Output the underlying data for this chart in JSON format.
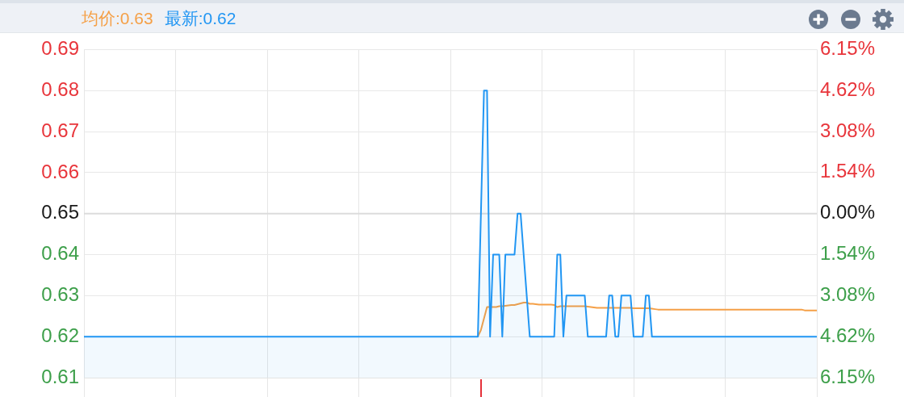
{
  "chart_data": {
    "type": "line",
    "categories": [
      null,
      null,
      null,
      null,
      null,
      null,
      null,
      null,
      null,
      null,
      null,
      null,
      null,
      null,
      null,
      null,
      null,
      null,
      null,
      null,
      null,
      null,
      null,
      null,
      null,
      null,
      null,
      null,
      null,
      null,
      null,
      null,
      null,
      null,
      null,
      null,
      null,
      null,
      null,
      null,
      null,
      null,
      null,
      null,
      null,
      null,
      null,
      null,
      null,
      null,
      null,
      null,
      null,
      null,
      null,
      null,
      null,
      null,
      null,
      null,
      null,
      null,
      null,
      null,
      null,
      null,
      null,
      null,
      null,
      null,
      null,
      null,
      null,
      null,
      null,
      null,
      null,
      null,
      null,
      null,
      null,
      null,
      null,
      null,
      null,
      null,
      null,
      null,
      null,
      null,
      null,
      null,
      null,
      null,
      null,
      null,
      null,
      null,
      null,
      null,
      null,
      null,
      null,
      null,
      null,
      null,
      null,
      null,
      null,
      null,
      null,
      null,
      null,
      null,
      null,
      null,
      null,
      null,
      null,
      null,
      null,
      null,
      null,
      null,
      null,
      null,
      null,
      null,
      null,
      null,
      null,
      null,
      null,
      null,
      null,
      null,
      null,
      null,
      null,
      null,
      null,
      null,
      null,
      null,
      null,
      null,
      null,
      null,
      null,
      null,
      null,
      null,
      null,
      null,
      null,
      null,
      null,
      null,
      null,
      null,
      null,
      null,
      null,
      null,
      null,
      null,
      null,
      null,
      null,
      null,
      null,
      null,
      null,
      null,
      null,
      null,
      null,
      null,
      null,
      null,
      null,
      null,
      null,
      null,
      null,
      null,
      null,
      null,
      null,
      null,
      null,
      null,
      null,
      null,
      null,
      null,
      null,
      null,
      null,
      null,
      null,
      null,
      null,
      null,
      null,
      null,
      null,
      null,
      null,
      null,
      null,
      null,
      null,
      null,
      null,
      null,
      null,
      null,
      null,
      null,
      null,
      null,
      null,
      null,
      null,
      null,
      null,
      null,
      null,
      null,
      null,
      null,
      null,
      null,
      null,
      null,
      null,
      null,
      null,
      null,
      null
    ],
    "series": [
      {
        "name": "均价:0.63",
        "type": "line",
        "color": "#f5a047",
        "values": [
          null,
          null,
          null,
          null,
          null,
          null,
          null,
          null,
          null,
          null,
          null,
          null,
          null,
          null,
          null,
          null,
          null,
          null,
          null,
          null,
          null,
          null,
          null,
          null,
          null,
          null,
          null,
          null,
          null,
          null,
          null,
          null,
          null,
          null,
          null,
          null,
          null,
          null,
          null,
          null,
          null,
          null,
          null,
          null,
          null,
          null,
          null,
          null,
          null,
          null,
          null,
          null,
          null,
          null,
          null,
          null,
          null,
          null,
          null,
          null,
          null,
          null,
          null,
          null,
          null,
          null,
          null,
          null,
          null,
          null,
          null,
          null,
          null,
          null,
          null,
          null,
          null,
          null,
          null,
          null,
          null,
          null,
          null,
          null,
          null,
          null,
          null,
          null,
          null,
          null,
          null,
          null,
          null,
          null,
          null,
          null,
          null,
          null,
          null,
          null,
          null,
          null,
          null,
          null,
          null,
          null,
          null,
          null,
          null,
          null,
          null,
          null,
          null,
          null,
          null,
          null,
          null,
          null,
          null,
          null,
          null,
          null,
          null,
          null,
          null,
          null,
          null,
          null,
          null,
          0.62,
          0.6216,
          0.6244,
          0.6272,
          0.6272,
          0.6272,
          0.6272,
          0.6274,
          0.6274,
          0.6275,
          0.6276,
          0.6277,
          0.6277,
          0.6279,
          0.6281,
          0.6283,
          0.6283,
          0.628,
          0.628,
          0.6279,
          0.6278,
          0.6278,
          0.6278,
          0.6278,
          0.6278,
          0.6277,
          0.6272,
          0.6274,
          0.6274,
          0.6274,
          0.6274,
          0.6274,
          0.6274,
          0.6274,
          0.6274,
          0.6274,
          0.6273,
          0.6272,
          0.6271,
          0.627,
          0.627,
          0.627,
          0.627,
          0.627,
          0.627,
          0.627,
          0.627,
          0.627,
          0.627,
          0.627,
          0.627,
          0.6269,
          0.6269,
          0.6269,
          0.6269,
          0.6269,
          0.6269,
          0.6268,
          0.6267,
          0.6266,
          0.6266,
          0.6266,
          0.6266,
          0.6266,
          0.6266,
          0.6266,
          0.6266,
          0.6266,
          0.6266,
          0.6266,
          0.6266,
          0.6266,
          0.6266,
          0.6266,
          0.6266,
          0.6266,
          0.6266,
          0.6266,
          0.6266,
          0.6266,
          0.6266,
          0.6266,
          0.6266,
          0.6266,
          0.6266,
          0.6266,
          0.6266,
          0.6266,
          0.6266,
          0.6266,
          0.6266,
          0.6266,
          0.6266,
          0.6266,
          0.6266,
          0.6266,
          0.6266,
          0.6266,
          0.6266,
          0.6266,
          0.6266,
          0.6266,
          0.6266,
          0.6266,
          0.6266,
          0.6266,
          0.6266,
          0.6264,
          0.6264,
          0.6264,
          0.6264,
          0.6264
        ]
      },
      {
        "name": "最新:0.62",
        "type": "area",
        "color": "#2196f3",
        "values": [
          0.62,
          0.62,
          0.62,
          0.62,
          0.62,
          0.62,
          0.62,
          0.62,
          0.62,
          0.62,
          0.62,
          0.62,
          0.62,
          0.62,
          0.62,
          0.62,
          0.62,
          0.62,
          0.62,
          0.62,
          0.62,
          0.62,
          0.62,
          0.62,
          0.62,
          0.62,
          0.62,
          0.62,
          0.62,
          0.62,
          0.62,
          0.62,
          0.62,
          0.62,
          0.62,
          0.62,
          0.62,
          0.62,
          0.62,
          0.62,
          0.62,
          0.62,
          0.62,
          0.62,
          0.62,
          0.62,
          0.62,
          0.62,
          0.62,
          0.62,
          0.62,
          0.62,
          0.62,
          0.62,
          0.62,
          0.62,
          0.62,
          0.62,
          0.62,
          0.62,
          0.62,
          0.62,
          0.62,
          0.62,
          0.62,
          0.62,
          0.62,
          0.62,
          0.62,
          0.62,
          0.62,
          0.62,
          0.62,
          0.62,
          0.62,
          0.62,
          0.62,
          0.62,
          0.62,
          0.62,
          0.62,
          0.62,
          0.62,
          0.62,
          0.62,
          0.62,
          0.62,
          0.62,
          0.62,
          0.62,
          0.62,
          0.62,
          0.62,
          0.62,
          0.62,
          0.62,
          0.62,
          0.62,
          0.62,
          0.62,
          0.62,
          0.62,
          0.62,
          0.62,
          0.62,
          0.62,
          0.62,
          0.62,
          0.62,
          0.62,
          0.62,
          0.62,
          0.62,
          0.62,
          0.62,
          0.62,
          0.62,
          0.62,
          0.62,
          0.62,
          0.62,
          0.62,
          0.62,
          0.62,
          0.62,
          0.62,
          0.62,
          0.62,
          0.62,
          0.62,
          0.65,
          0.68,
          0.68,
          0.62,
          0.64,
          0.64,
          0.64,
          0.62,
          0.64,
          0.64,
          0.64,
          0.64,
          0.65,
          0.65,
          0.64,
          0.63,
          0.62,
          0.62,
          0.62,
          0.62,
          0.62,
          0.62,
          0.62,
          0.62,
          0.62,
          0.64,
          0.64,
          0.62,
          0.63,
          0.63,
          0.63,
          0.63,
          0.63,
          0.63,
          0.63,
          0.62,
          0.62,
          0.62,
          0.62,
          0.62,
          0.62,
          0.62,
          0.63,
          0.63,
          0.62,
          0.62,
          0.63,
          0.63,
          0.63,
          0.63,
          0.62,
          0.62,
          0.62,
          0.62,
          0.63,
          0.63,
          0.62,
          0.62,
          0.62,
          0.62,
          0.62,
          0.62,
          0.62,
          0.62,
          0.62,
          0.62,
          0.62,
          0.62,
          0.62,
          0.62,
          0.62,
          0.62,
          0.62,
          0.62,
          0.62,
          0.62,
          0.62,
          0.62,
          0.62,
          0.62,
          0.62,
          0.62,
          0.62,
          0.62,
          0.62,
          0.62,
          0.62,
          0.62,
          0.62,
          0.62,
          0.62,
          0.62,
          0.62,
          0.62,
          0.62,
          0.62,
          0.62,
          0.62,
          0.62,
          0.62,
          0.62,
          0.62,
          0.62,
          0.62,
          0.62,
          0.62,
          0.62,
          0.62,
          0.62,
          0.62,
          0.62
        ]
      }
    ],
    "ylim": [
      0.61,
      0.69
    ],
    "yticks": [
      0.61,
      0.62,
      0.63,
      0.64,
      0.65,
      0.66,
      0.67,
      0.68,
      0.69
    ],
    "y2lim": [
      -6.15,
      6.15
    ],
    "y2ticks": [
      {
        "value": -6.15,
        "label": "6.15%"
      },
      {
        "value": -4.62,
        "label": "4.62%"
      },
      {
        "value": -3.08,
        "label": "3.08%"
      },
      {
        "value": -1.54,
        "label": "1.54%"
      },
      {
        "value": 0,
        "label": "0.00%"
      },
      {
        "value": 1.54,
        "label": "1.54%"
      },
      {
        "value": 3.08,
        "label": "3.08%"
      },
      {
        "value": 4.62,
        "label": "4.62%"
      },
      {
        "value": 6.15,
        "label": "6.15%"
      }
    ],
    "ref_lines": [
      {
        "axis": "y",
        "value": 0.65,
        "color": "#dcdcdc"
      }
    ],
    "grid": true,
    "legend": "top left",
    "tick_labels": "y"
  }
}
